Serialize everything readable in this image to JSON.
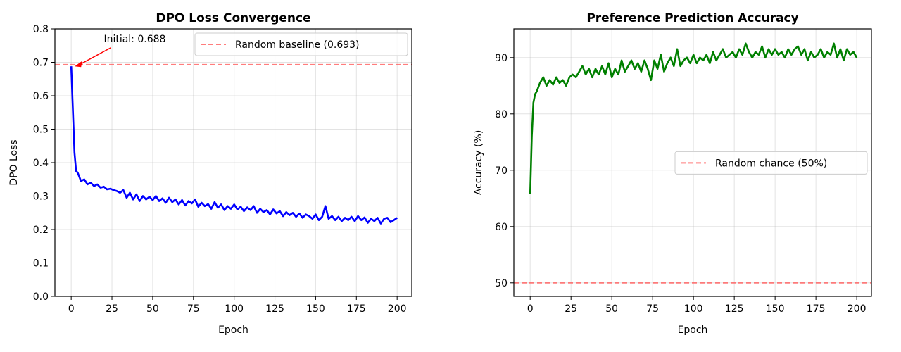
{
  "chart_data": [
    {
      "type": "line",
      "title": "DPO Loss Convergence",
      "xlabel": "Epoch",
      "ylabel": "DPO Loss",
      "xlim": [
        -10,
        209
      ],
      "ylim": [
        0.0,
        0.8
      ],
      "xticks": [
        0,
        25,
        50,
        75,
        100,
        125,
        150,
        175,
        200
      ],
      "xtick_labels": [
        "0",
        "25",
        "50",
        "75",
        "100",
        "125",
        "150",
        "175",
        "200"
      ],
      "yticks": [
        0.0,
        0.1,
        0.2,
        0.3,
        0.4,
        0.5,
        0.6,
        0.7,
        0.8
      ],
      "ytick_labels": [
        "0.0",
        "0.1",
        "0.2",
        "0.3",
        "0.4",
        "0.5",
        "0.6",
        "0.7",
        "0.8"
      ],
      "grid": true,
      "series": [
        {
          "name": "DPO Loss",
          "color": "#0000ff",
          "x": [
            0,
            1,
            2,
            3,
            4,
            6,
            8,
            10,
            12,
            14,
            16,
            18,
            20,
            22,
            24,
            26,
            28,
            30,
            32,
            34,
            36,
            38,
            40,
            42,
            44,
            46,
            48,
            50,
            52,
            54,
            56,
            58,
            60,
            62,
            64,
            66,
            68,
            70,
            72,
            74,
            76,
            78,
            80,
            82,
            84,
            86,
            88,
            90,
            92,
            94,
            96,
            98,
            100,
            102,
            104,
            106,
            108,
            110,
            112,
            114,
            116,
            118,
            120,
            122,
            124,
            126,
            128,
            130,
            132,
            134,
            136,
            138,
            140,
            142,
            144,
            146,
            148,
            150,
            152,
            154,
            156,
            158,
            160,
            162,
            164,
            166,
            168,
            170,
            172,
            174,
            176,
            178,
            180,
            182,
            184,
            186,
            188,
            190,
            192,
            194,
            196,
            198,
            200
          ],
          "y": [
            0.688,
            0.56,
            0.43,
            0.375,
            0.37,
            0.345,
            0.35,
            0.335,
            0.34,
            0.33,
            0.335,
            0.325,
            0.328,
            0.32,
            0.322,
            0.318,
            0.315,
            0.31,
            0.318,
            0.295,
            0.31,
            0.29,
            0.305,
            0.285,
            0.3,
            0.29,
            0.298,
            0.288,
            0.3,
            0.285,
            0.293,
            0.28,
            0.295,
            0.282,
            0.29,
            0.275,
            0.288,
            0.272,
            0.285,
            0.278,
            0.29,
            0.268,
            0.28,
            0.27,
            0.276,
            0.262,
            0.282,
            0.265,
            0.275,
            0.258,
            0.27,
            0.262,
            0.275,
            0.26,
            0.268,
            0.255,
            0.266,
            0.258,
            0.27,
            0.25,
            0.262,
            0.252,
            0.258,
            0.245,
            0.26,
            0.248,
            0.255,
            0.24,
            0.252,
            0.243,
            0.25,
            0.238,
            0.248,
            0.235,
            0.245,
            0.24,
            0.232,
            0.245,
            0.228,
            0.238,
            0.27,
            0.232,
            0.24,
            0.228,
            0.238,
            0.225,
            0.235,
            0.228,
            0.238,
            0.225,
            0.24,
            0.228,
            0.236,
            0.22,
            0.232,
            0.225,
            0.235,
            0.218,
            0.232,
            0.235,
            0.222,
            0.228,
            0.235
          ]
        }
      ],
      "reference_line": {
        "label": "Random baseline (0.693)",
        "y": 0.693,
        "color": "#ff6666"
      },
      "annotation": {
        "text": "Initial: 0.688",
        "point": [
          0,
          0.688
        ],
        "text_pos": [
          20,
          0.75
        ],
        "color": "#ff0000"
      },
      "legend": "top-right"
    },
    {
      "type": "line",
      "title": "Preference Prediction Accuracy",
      "xlabel": "Epoch",
      "ylabel": "Accuracy (%)",
      "xlim": [
        -10,
        209
      ],
      "ylim": [
        47.6,
        95.1
      ],
      "xticks": [
        0,
        25,
        50,
        75,
        100,
        125,
        150,
        175,
        200
      ],
      "xtick_labels": [
        "0",
        "25",
        "50",
        "75",
        "100",
        "125",
        "150",
        "175",
        "200"
      ],
      "yticks": [
        50,
        60,
        70,
        80,
        90
      ],
      "ytick_labels": [
        "50",
        "60",
        "70",
        "80",
        "90"
      ],
      "grid": true,
      "series": [
        {
          "name": "Accuracy",
          "color": "#008000",
          "x": [
            0,
            1,
            2,
            3,
            4,
            6,
            8,
            10,
            12,
            14,
            16,
            18,
            20,
            22,
            24,
            26,
            28,
            30,
            32,
            34,
            36,
            38,
            40,
            42,
            44,
            46,
            48,
            50,
            52,
            54,
            56,
            58,
            60,
            62,
            64,
            66,
            68,
            70,
            72,
            74,
            76,
            78,
            80,
            82,
            84,
            86,
            88,
            90,
            92,
            94,
            96,
            98,
            100,
            102,
            104,
            106,
            108,
            110,
            112,
            114,
            116,
            118,
            120,
            122,
            124,
            126,
            128,
            130,
            132,
            134,
            136,
            138,
            140,
            142,
            144,
            146,
            148,
            150,
            152,
            154,
            156,
            158,
            160,
            162,
            164,
            166,
            168,
            170,
            172,
            174,
            176,
            178,
            180,
            182,
            184,
            186,
            188,
            190,
            192,
            194,
            196,
            198,
            200
          ],
          "y": [
            65.8,
            76,
            82,
            83.5,
            84,
            85.5,
            86.5,
            85,
            86,
            85.2,
            86.5,
            85.5,
            86,
            85,
            86.5,
            87,
            86.5,
            87.5,
            88.5,
            87,
            88,
            86.5,
            88,
            87,
            88.5,
            87,
            89,
            86.5,
            88,
            87,
            89.5,
            87.5,
            88.5,
            89.5,
            88,
            89,
            87.5,
            89.5,
            88,
            86,
            89.5,
            88,
            90.5,
            87.5,
            89,
            90,
            88.5,
            91.5,
            88.5,
            89.5,
            90,
            89,
            90.5,
            89,
            90,
            89.5,
            90.5,
            89,
            91,
            89.5,
            90.5,
            91.5,
            90,
            90.5,
            91,
            90,
            91.5,
            90.5,
            92.5,
            91,
            90,
            91,
            90.5,
            92,
            90,
            91.5,
            90.5,
            91.5,
            90.5,
            91,
            90,
            91.5,
            90.5,
            91.5,
            92,
            90.5,
            91.5,
            89.5,
            91,
            90,
            90.5,
            91.5,
            90,
            91,
            90.5,
            92.5,
            90,
            91.5,
            89.5,
            91.5,
            90.5,
            91,
            90
          ]
        }
      ],
      "reference_line": {
        "label": "Random chance (50%)",
        "y": 50,
        "color": "#ff6666"
      },
      "legend": "center-right"
    }
  ]
}
